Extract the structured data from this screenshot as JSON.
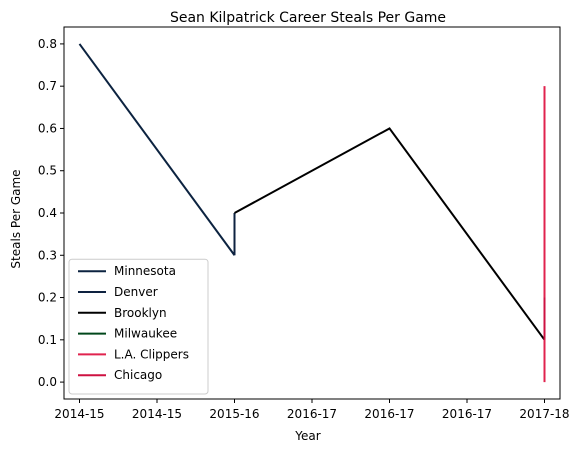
{
  "chart_data": {
    "type": "line",
    "title": "Sean Kilpatrick Career Steals Per Game",
    "xlabel": "Year",
    "ylabel": "Steals Per Game",
    "x_tick_labels": [
      "2014-15",
      "2014-15",
      "2015-16",
      "2016-17",
      "2016-17",
      "2016-17",
      "2017-18"
    ],
    "x_tick_positions": [
      0,
      1,
      2,
      3,
      4,
      5,
      6
    ],
    "xlim": [
      -0.2,
      6.2
    ],
    "ylim": [
      -0.04,
      0.84
    ],
    "y_ticks": [
      "0.0",
      "0.1",
      "0.2",
      "0.3",
      "0.4",
      "0.5",
      "0.6",
      "0.7",
      "0.8"
    ],
    "grid": false,
    "legend_position": "lower-left",
    "series": [
      {
        "name": "Minnesota",
        "color": "#0c2340",
        "x": [
          0,
          2
        ],
        "y": [
          0.8,
          0.3
        ]
      },
      {
        "name": "Denver",
        "color": "#0e2240",
        "x": [
          2,
          2
        ],
        "y": [
          0.3,
          0.4
        ]
      },
      {
        "name": "Brooklyn",
        "color": "#000000",
        "x": [
          2,
          4,
          6
        ],
        "y": [
          0.4,
          0.6,
          0.1
        ]
      },
      {
        "name": "Milwaukee",
        "color": "#00471b",
        "x": [
          6,
          6
        ],
        "y": [
          0.1,
          0.2
        ]
      },
      {
        "name": "L.A. Clippers",
        "color": "#e0234e",
        "x": [
          6,
          6
        ],
        "y": [
          0.0,
          0.7
        ]
      },
      {
        "name": "Chicago",
        "color": "#ce1141",
        "x": [
          6,
          6
        ],
        "y": [
          0.1,
          0.2
        ]
      }
    ]
  }
}
